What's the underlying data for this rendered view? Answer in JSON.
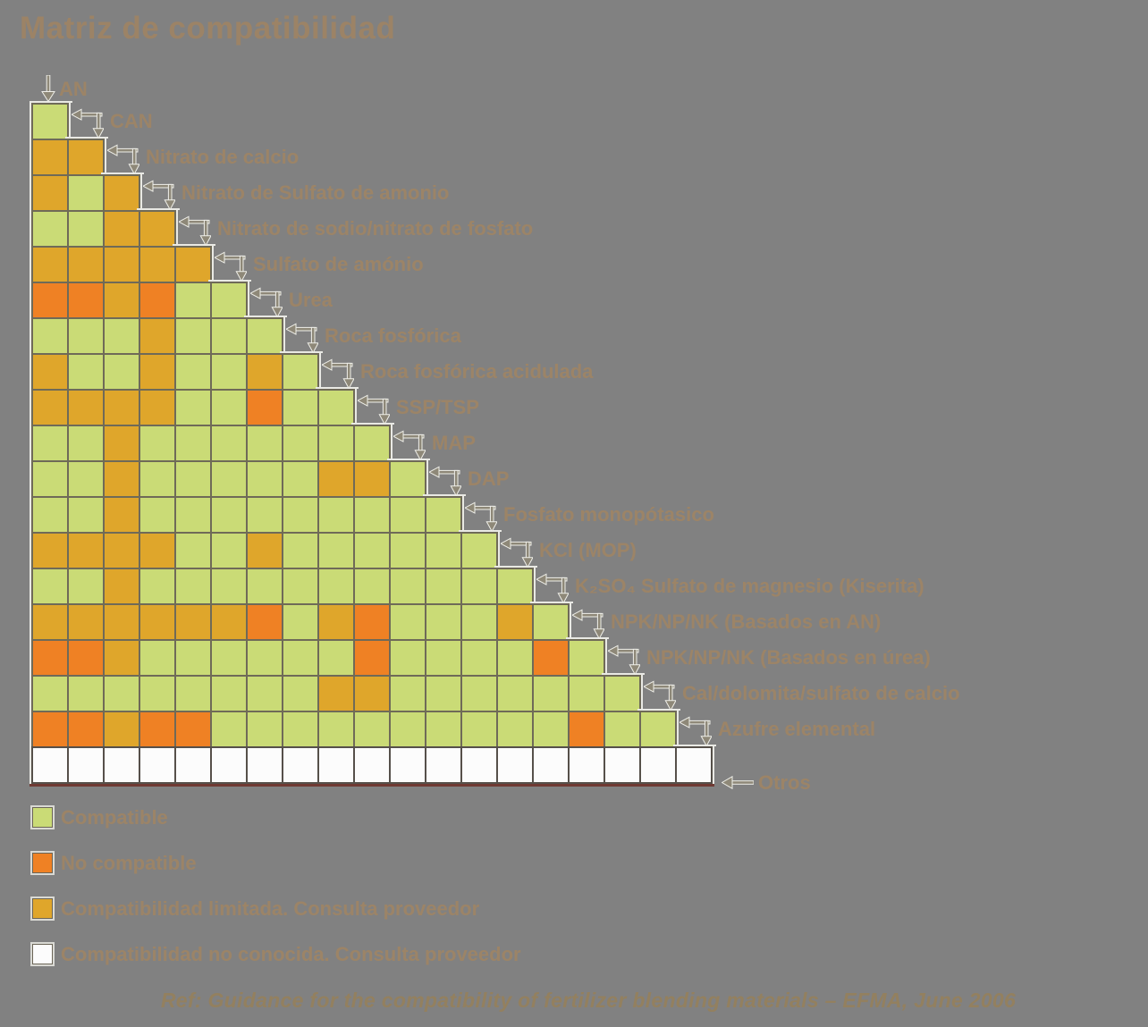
{
  "title": "Matriz de compatibilidad",
  "footer": "Ref: Guidance for the compatibility of fertilizer blending materials – EFMA, June 2006",
  "legend": [
    {
      "code": "C",
      "label": "Compatible"
    },
    {
      "code": "N",
      "label": "No compatible"
    },
    {
      "code": "L",
      "label": "Compatibilidad limitada. Consulta proveedor"
    },
    {
      "code": "U",
      "label": "Compatibilidad no conocida. Consulta proveedor"
    }
  ],
  "colors": {
    "compatible": "#cadb76",
    "not_compatible": "#ef8124",
    "limited": "#dfa62b",
    "unknown": "#fcfcfc",
    "background": "#818181",
    "grid_line": "#6f6a58",
    "text_brown": "#9c8467"
  },
  "chart_data": {
    "type": "heatmap",
    "title": "Matriz de compatibilidad",
    "legend_position": "bottom-left",
    "code_meaning": {
      "C": "Compatible",
      "N": "No compatible",
      "L": "Compatibilidad limitada. Consulta proveedor",
      "U": "Compatibilidad no conocida. Consulta proveedor"
    },
    "substances": [
      "AN",
      "CAN",
      "Nitrato de calcio",
      "Nitrato de Sulfato de amonio",
      "Nitrato de sodio/nitrato de fosfato",
      "Sulfato de amónio",
      "Urea",
      "Roca fosfórica",
      "Roca fosfórica acidulada",
      "SSP/TSP",
      "MAP",
      "DAP",
      "Fosfato monopótasico",
      "KCl (MOP)",
      "K₂SO₄ Sulfato de magnesio (Kiserita)",
      "NPK/NP/NK (Basados en AN)",
      "NPK/NP/NK (Basados en úrea)",
      "Cal/dolomita/sulfato de calcio",
      "Azufre elemental",
      "Otros"
    ],
    "rows": [
      {
        "substance": "CAN",
        "cells": [
          "C"
        ]
      },
      {
        "substance": "Nitrato de calcio",
        "cells": [
          "L",
          "L"
        ]
      },
      {
        "substance": "Nitrato de Sulfato de amonio",
        "cells": [
          "L",
          "C",
          "L"
        ]
      },
      {
        "substance": "Nitrato de sodio/nitrato de fosfato",
        "cells": [
          "C",
          "C",
          "L",
          "L"
        ]
      },
      {
        "substance": "Sulfato de amónio",
        "cells": [
          "L",
          "L",
          "L",
          "L",
          "L"
        ]
      },
      {
        "substance": "Urea",
        "cells": [
          "N",
          "N",
          "L",
          "N",
          "C",
          "C"
        ]
      },
      {
        "substance": "Roca fosfórica",
        "cells": [
          "C",
          "C",
          "C",
          "L",
          "C",
          "C",
          "C"
        ]
      },
      {
        "substance": "Roca fosfórica acidulada",
        "cells": [
          "L",
          "C",
          "C",
          "L",
          "C",
          "C",
          "L",
          "C"
        ]
      },
      {
        "substance": "SSP/TSP",
        "cells": [
          "L",
          "L",
          "L",
          "L",
          "C",
          "C",
          "N",
          "C",
          "C"
        ]
      },
      {
        "substance": "MAP",
        "cells": [
          "C",
          "C",
          "L",
          "C",
          "C",
          "C",
          "C",
          "C",
          "C",
          "C"
        ]
      },
      {
        "substance": "DAP",
        "cells": [
          "C",
          "C",
          "L",
          "C",
          "C",
          "C",
          "C",
          "C",
          "L",
          "L",
          "C"
        ]
      },
      {
        "substance": "Fosfato monopótasico",
        "cells": [
          "C",
          "C",
          "L",
          "C",
          "C",
          "C",
          "C",
          "C",
          "C",
          "C",
          "C",
          "C"
        ]
      },
      {
        "substance": "KCl (MOP)",
        "cells": [
          "L",
          "L",
          "L",
          "L",
          "C",
          "C",
          "L",
          "C",
          "C",
          "C",
          "C",
          "C",
          "C"
        ]
      },
      {
        "substance": "K₂SO₄ Sulfato de magnesio (Kiserita)",
        "cells": [
          "C",
          "C",
          "L",
          "C",
          "C",
          "C",
          "C",
          "C",
          "C",
          "C",
          "C",
          "C",
          "C",
          "C"
        ]
      },
      {
        "substance": "NPK/NP/NK (Basados en AN)",
        "cells": [
          "L",
          "L",
          "L",
          "L",
          "L",
          "L",
          "N",
          "C",
          "L",
          "N",
          "C",
          "C",
          "C",
          "L",
          "C"
        ]
      },
      {
        "substance": "NPK/NP/NK (Basados en úrea)",
        "cells": [
          "N",
          "N",
          "L",
          "C",
          "C",
          "C",
          "C",
          "C",
          "C",
          "N",
          "C",
          "C",
          "C",
          "C",
          "N",
          "C"
        ]
      },
      {
        "substance": "Cal/dolomita/sulfato de calcio",
        "cells": [
          "C",
          "C",
          "C",
          "C",
          "C",
          "C",
          "C",
          "C",
          "L",
          "L",
          "C",
          "C",
          "C",
          "C",
          "C",
          "C",
          "C"
        ]
      },
      {
        "substance": "Azufre elemental",
        "cells": [
          "N",
          "N",
          "L",
          "N",
          "N",
          "C",
          "C",
          "C",
          "C",
          "C",
          "C",
          "C",
          "C",
          "C",
          "C",
          "N",
          "C",
          "C"
        ]
      },
      {
        "substance": "Otros",
        "cells": [
          "U",
          "U",
          "U",
          "U",
          "U",
          "U",
          "U",
          "U",
          "U",
          "U",
          "U",
          "U",
          "U",
          "U",
          "U",
          "U",
          "U",
          "U",
          "U"
        ]
      }
    ]
  }
}
